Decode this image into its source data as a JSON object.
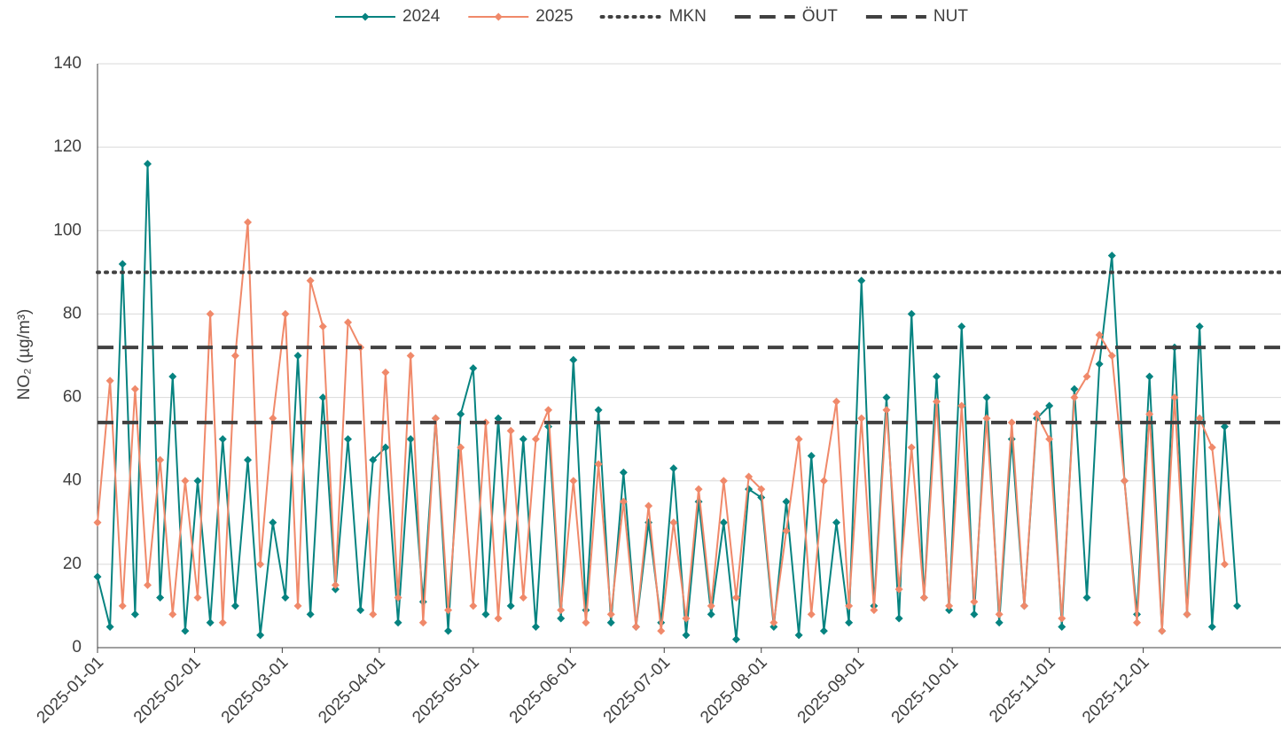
{
  "chart_data": {
    "type": "line",
    "ylabel": "NO₂ (µg/m³)",
    "x": [
      "2025-01-01",
      "2025-01-05",
      "2025-01-09",
      "2025-01-13",
      "2025-01-17",
      "2025-01-21",
      "2025-01-25",
      "2025-01-29",
      "2025-02-02",
      "2025-02-06",
      "2025-02-10",
      "2025-02-14",
      "2025-02-18",
      "2025-02-22",
      "2025-02-26",
      "2025-03-02",
      "2025-03-06",
      "2025-03-10",
      "2025-03-14",
      "2025-03-18",
      "2025-03-22",
      "2025-03-26",
      "2025-03-30",
      "2025-04-03",
      "2025-04-07",
      "2025-04-11",
      "2025-04-15",
      "2025-04-19",
      "2025-04-23",
      "2025-04-27",
      "2025-05-01",
      "2025-05-05",
      "2025-05-09",
      "2025-05-13",
      "2025-05-17",
      "2025-05-21",
      "2025-05-25",
      "2025-05-29",
      "2025-06-02",
      "2025-06-06",
      "2025-06-10",
      "2025-06-14",
      "2025-06-18",
      "2025-06-22",
      "2025-06-26",
      "2025-06-30",
      "2025-07-04",
      "2025-07-08",
      "2025-07-12",
      "2025-07-16",
      "2025-07-20",
      "2025-07-24",
      "2025-07-28",
      "2025-08-01",
      "2025-08-05",
      "2025-08-09",
      "2025-08-13",
      "2025-08-17",
      "2025-08-21",
      "2025-08-25",
      "2025-08-29",
      "2025-09-02",
      "2025-09-06",
      "2025-09-10",
      "2025-09-14",
      "2025-09-18",
      "2025-09-22",
      "2025-09-26",
      "2025-09-30",
      "2025-10-04",
      "2025-10-08",
      "2025-10-12",
      "2025-10-16",
      "2025-10-20",
      "2025-10-24",
      "2025-10-28",
      "2025-11-01",
      "2025-11-05",
      "2025-11-09",
      "2025-11-13",
      "2025-11-17",
      "2025-11-21",
      "2025-11-25",
      "2025-11-29",
      "2025-12-03",
      "2025-12-07",
      "2025-12-11",
      "2025-12-15",
      "2025-12-19",
      "2025-12-23",
      "2025-12-27",
      "2025-12-31"
    ],
    "series": [
      {
        "name": "2024",
        "color": "#068380",
        "values": [
          17,
          5,
          92,
          8,
          116,
          12,
          65,
          4,
          40,
          6,
          50,
          10,
          45,
          3,
          30,
          12,
          70,
          8,
          60,
          14,
          50,
          9,
          45,
          48,
          6,
          50,
          11,
          55,
          4,
          56,
          67,
          8,
          55,
          10,
          50,
          5,
          53,
          7,
          69,
          9,
          57,
          6,
          42,
          5,
          30,
          6,
          43,
          3,
          35,
          8,
          30,
          2,
          38,
          36,
          5,
          35,
          3,
          46,
          4,
          30,
          6,
          88,
          10,
          60,
          7,
          80,
          12,
          65,
          9,
          77,
          8,
          60,
          6,
          50,
          10,
          55,
          58,
          5,
          62,
          12,
          68,
          94,
          40,
          8,
          65,
          4,
          72,
          8,
          77,
          5,
          53,
          10
        ]
      },
      {
        "name": "2025",
        "color": "#F0896A",
        "values": [
          30,
          64,
          10,
          62,
          15,
          45,
          8,
          40,
          12,
          80,
          6,
          70,
          102,
          20,
          55,
          80,
          10,
          88,
          77,
          15,
          78,
          72,
          8,
          66,
          12,
          70,
          6,
          55,
          9,
          48,
          10,
          54,
          7,
          52,
          12,
          50,
          57,
          9,
          40,
          6,
          44,
          8,
          35,
          5,
          34,
          4,
          30,
          7,
          38,
          10,
          40,
          12,
          41,
          38,
          6,
          28,
          50,
          8,
          40,
          59,
          10,
          55,
          9,
          57,
          14,
          48,
          12,
          59,
          10,
          58,
          11,
          55,
          8,
          54,
          10,
          56,
          50,
          7,
          60,
          65,
          75,
          70,
          40,
          6,
          56,
          4,
          60,
          8,
          55,
          48,
          20,
          null
        ]
      }
    ],
    "reference_lines": [
      {
        "name": "MKN",
        "value": 90,
        "style": "dotted",
        "color": "#404040"
      },
      {
        "name": "ÖUT",
        "value": 72,
        "style": "dashed",
        "color": "#404040"
      },
      {
        "name": "NUT",
        "value": 54,
        "style": "dashed",
        "color": "#404040"
      }
    ],
    "xlim": [
      "2025-01-01",
      "2026-01-14"
    ],
    "xticks": [
      "2025-01-01",
      "2025-02-01",
      "2025-03-01",
      "2025-04-01",
      "2025-05-01",
      "2025-06-01",
      "2025-07-01",
      "2025-08-01",
      "2025-09-01",
      "2025-10-01",
      "2025-11-01",
      "2025-12-01"
    ],
    "ylim": [
      0,
      140
    ],
    "yticks": [
      0,
      20,
      40,
      60,
      80,
      100,
      120,
      140
    ],
    "grid": true,
    "legend": "top"
  }
}
